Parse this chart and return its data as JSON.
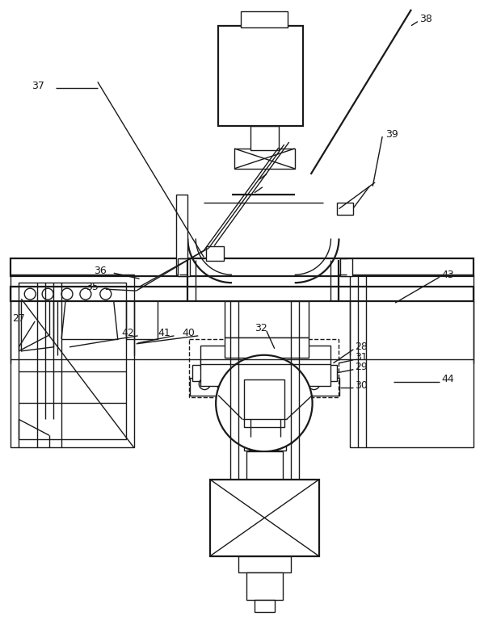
{
  "bg_color": "#ffffff",
  "line_color": "#1a1a1a",
  "lw": 1.0,
  "lw2": 1.6,
  "fig_w": 5.99,
  "fig_h": 7.84
}
